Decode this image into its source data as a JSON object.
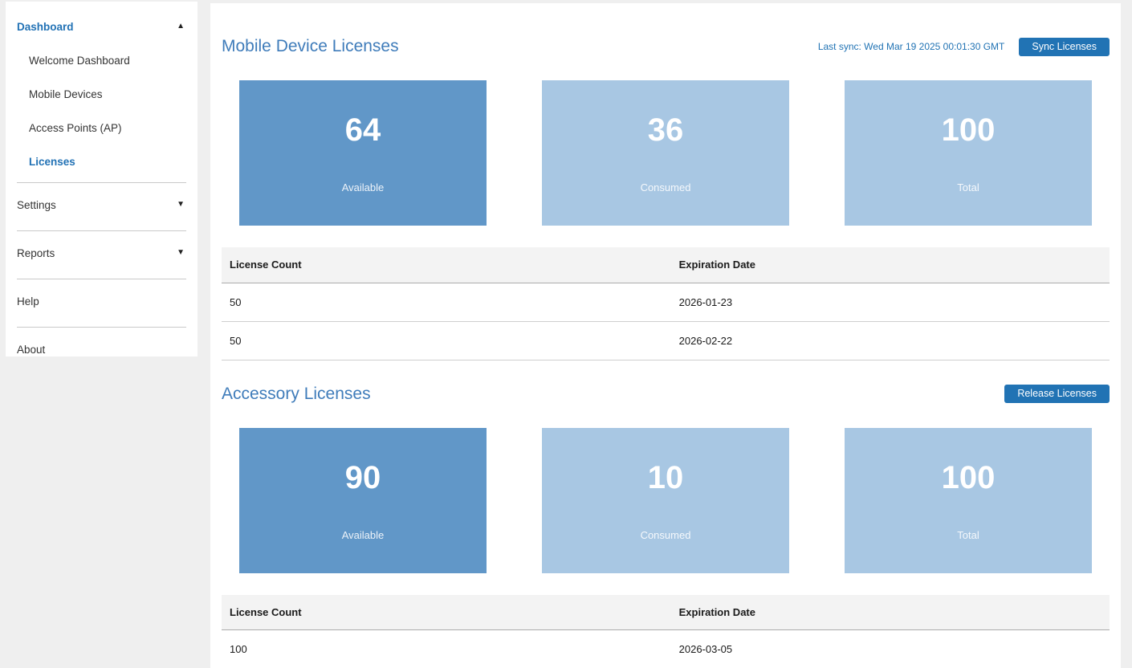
{
  "sidebar": {
    "dashboard_group": {
      "label": "Dashboard",
      "state": "expanded"
    },
    "dashboard_items": [
      {
        "label": "Welcome Dashboard",
        "active": false
      },
      {
        "label": "Mobile Devices",
        "active": false
      },
      {
        "label": "Access Points (AP)",
        "active": false
      },
      {
        "label": "Licenses",
        "active": true
      }
    ],
    "settings": {
      "label": "Settings",
      "state": "collapsed"
    },
    "reports": {
      "label": "Reports",
      "state": "collapsed"
    },
    "help": {
      "label": "Help"
    },
    "about": {
      "label": "About"
    }
  },
  "main": {
    "mobile_section": {
      "title": "Mobile Device Licenses",
      "last_sync": "Last sync: Wed Mar 19 2025 00:01:30 GMT",
      "sync_button": "Sync Licenses",
      "cards": [
        {
          "value": "64",
          "label": "Available",
          "color": "#6197c8"
        },
        {
          "value": "36",
          "label": "Consumed",
          "color": "#a8c7e3"
        },
        {
          "value": "100",
          "label": "Total",
          "color": "#a8c7e3"
        }
      ],
      "table": {
        "headers": [
          "License Count",
          "Expiration Date"
        ],
        "rows": [
          [
            "50",
            "2026-01-23"
          ],
          [
            "50",
            "2026-02-22"
          ]
        ]
      }
    },
    "accessory_section": {
      "title": "Accessory Licenses",
      "release_button": "Release Licenses",
      "cards": [
        {
          "value": "90",
          "label": "Available",
          "color": "#6197c8"
        },
        {
          "value": "10",
          "label": "Consumed",
          "color": "#a8c7e3"
        },
        {
          "value": "100",
          "label": "Total",
          "color": "#a8c7e3"
        }
      ],
      "table": {
        "headers": [
          "License Count",
          "Expiration Date"
        ],
        "rows": [
          [
            "100",
            "2026-03-05"
          ]
        ]
      }
    }
  },
  "colors": {
    "accent_blue": "#2173b4",
    "heading_blue": "#3f7cba",
    "card_available": "#6197c8",
    "card_light": "#a8c7e3",
    "page_background": "#efefef"
  }
}
